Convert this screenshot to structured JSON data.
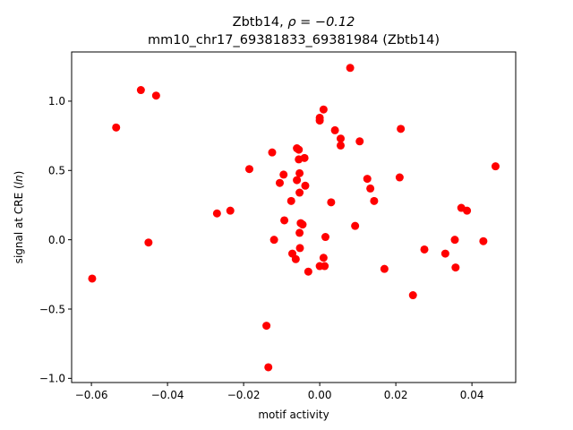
{
  "chart_data": {
    "type": "scatter",
    "title_line1_prefix": "Zbtb14, ",
    "title_line1_rho": "ρ = −0.12",
    "title_line2": "mm10_chr17_69381833_69381984 (Zbtb14)",
    "xlabel": "motif activity",
    "ylabel_prefix": "signal at CRE (",
    "ylabel_italic": "ln",
    "ylabel_suffix": ")",
    "xlim": [
      -0.0652,
      0.0515
    ],
    "ylim": [
      -1.03,
      1.355
    ],
    "xticks": [
      -0.06,
      -0.04,
      -0.02,
      0.0,
      0.02,
      0.04
    ],
    "xtick_labels": [
      "−0.06",
      "−0.04",
      "−0.02",
      "0.00",
      "0.02",
      "0.04"
    ],
    "yticks": [
      -1.0,
      -0.5,
      0.0,
      0.5,
      1.0
    ],
    "ytick_labels": [
      "−1.0",
      "−0.5",
      "0.0",
      "0.5",
      "1.0"
    ],
    "grid": false,
    "marker_color": "#ff0000",
    "series": [
      {
        "points": [
          [
            -0.0598,
            -0.28
          ],
          [
            -0.0535,
            0.81
          ],
          [
            -0.047,
            1.08
          ],
          [
            -0.045,
            -0.02
          ],
          [
            -0.043,
            1.04
          ],
          [
            -0.027,
            0.19
          ],
          [
            -0.0235,
            0.21
          ],
          [
            -0.0185,
            0.51
          ],
          [
            -0.014,
            -0.62
          ],
          [
            -0.0135,
            -0.92
          ],
          [
            -0.0125,
            0.63
          ],
          [
            -0.012,
            0.0
          ],
          [
            -0.0105,
            0.41
          ],
          [
            -0.0095,
            0.47
          ],
          [
            -0.0093,
            0.14
          ],
          [
            -0.0075,
            0.28
          ],
          [
            -0.0072,
            -0.1
          ],
          [
            -0.0063,
            -0.14
          ],
          [
            -0.006,
            0.66
          ],
          [
            -0.006,
            0.43
          ],
          [
            -0.0055,
            0.65
          ],
          [
            -0.0055,
            0.58
          ],
          [
            -0.0053,
            0.48
          ],
          [
            -0.0053,
            0.34
          ],
          [
            -0.0053,
            0.05
          ],
          [
            -0.0052,
            -0.06
          ],
          [
            -0.005,
            0.12
          ],
          [
            -0.0045,
            0.11
          ],
          [
            -0.004,
            0.59
          ],
          [
            -0.0038,
            0.39
          ],
          [
            -0.003,
            -0.23
          ],
          [
            0.0,
            0.88
          ],
          [
            0.0,
            0.86
          ],
          [
            0.0,
            -0.19
          ],
          [
            0.001,
            0.94
          ],
          [
            0.001,
            -0.13
          ],
          [
            0.0013,
            -0.19
          ],
          [
            0.0015,
            0.02
          ],
          [
            0.003,
            0.27
          ],
          [
            0.004,
            0.79
          ],
          [
            0.0055,
            0.73
          ],
          [
            0.0055,
            0.68
          ],
          [
            0.008,
            1.24
          ],
          [
            0.0093,
            0.1
          ],
          [
            0.0105,
            0.71
          ],
          [
            0.0125,
            0.44
          ],
          [
            0.0133,
            0.37
          ],
          [
            0.0143,
            0.28
          ],
          [
            0.017,
            -0.21
          ],
          [
            0.021,
            0.45
          ],
          [
            0.0213,
            0.8
          ],
          [
            0.0245,
            -0.4
          ],
          [
            0.0275,
            -0.07
          ],
          [
            0.033,
            -0.1
          ],
          [
            0.0355,
            0.0
          ],
          [
            0.0357,
            -0.2
          ],
          [
            0.0372,
            0.23
          ],
          [
            0.0387,
            0.21
          ],
          [
            0.043,
            -0.01
          ],
          [
            0.0462,
            0.53
          ]
        ]
      }
    ]
  }
}
